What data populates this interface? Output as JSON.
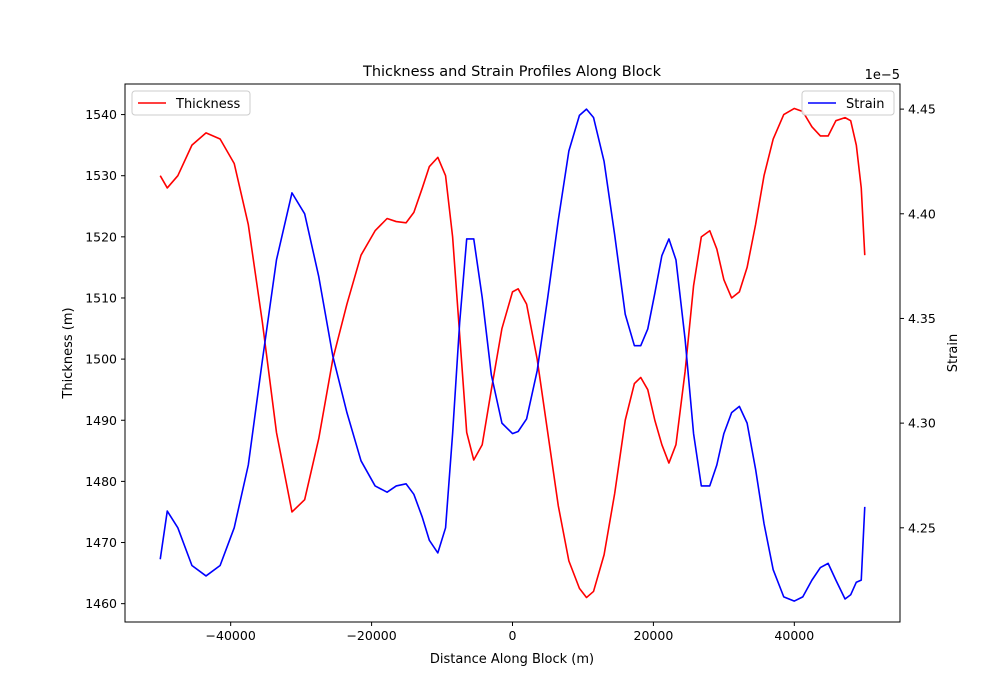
{
  "chart_data": {
    "type": "line",
    "title": "Thickness and Strain Profiles Along Block",
    "xlabel": "Distance Along Block (m)",
    "ylabel": "Thickness (m)",
    "ylabel_right": "Strain",
    "offset_text_right": "1e−5",
    "xlim": [
      -55000,
      55000
    ],
    "ylim": [
      1457,
      1545
    ],
    "ylim_right": [
      4.205,
      4.462
    ],
    "right_axis_multiplier": 1e-05,
    "xticks": [
      -40000,
      -20000,
      0,
      20000,
      40000
    ],
    "xtick_labels": [
      "−40000",
      "−20000",
      "0",
      "20000",
      "40000"
    ],
    "yticks": [
      1460,
      1470,
      1480,
      1490,
      1500,
      1510,
      1520,
      1530,
      1540
    ],
    "yticks_right": [
      4.25,
      4.3,
      4.35,
      4.4,
      4.45
    ],
    "ytick_labels_right": [
      "4.25",
      "4.30",
      "4.35",
      "4.40",
      "4.45"
    ],
    "grid": false,
    "series": [
      {
        "name": "Thickness",
        "axis": "left",
        "color": "#ff0000",
        "legend_position": "upper-left",
        "x": [
          -50000,
          -49000,
          -47500,
          -45500,
          -43500,
          -41500,
          -39500,
          -37500,
          -35500,
          -33500,
          -31300,
          -29500,
          -27500,
          -25500,
          -23500,
          -21500,
          -19500,
          -17800,
          -16500,
          -15100,
          -14000,
          -12800,
          -11800,
          -10600,
          -9500,
          -8500,
          -7500,
          -6500,
          -5500,
          -4300,
          -3000,
          -1500,
          0,
          800,
          2000,
          3500,
          5000,
          6500,
          8000,
          9500,
          10500,
          11500,
          13000,
          14500,
          16000,
          17300,
          18200,
          19200,
          20200,
          21200,
          22200,
          23200,
          24500,
          25700,
          26800,
          28000,
          29000,
          30000,
          31100,
          32200,
          33300,
          34500,
          35700,
          37000,
          38500,
          40000,
          41200,
          42500,
          43700,
          44800,
          45900,
          47200,
          48000,
          48800,
          49500,
          50000
        ],
        "y": [
          1530.0,
          1528.0,
          1530.0,
          1535.0,
          1537.0,
          1536.0,
          1532.0,
          1522.0,
          1506.0,
          1488.0,
          1475.0,
          1477.0,
          1487.0,
          1500.0,
          1509.0,
          1517.0,
          1521.0,
          1523.0,
          1522.5,
          1522.3,
          1524.0,
          1528.0,
          1531.5,
          1533.0,
          1530.0,
          1520.0,
          1504.0,
          1488.0,
          1483.5,
          1486.0,
          1495.0,
          1505.0,
          1511.0,
          1511.5,
          1509.0,
          1500.0,
          1488.0,
          1476.0,
          1467.0,
          1462.5,
          1461.0,
          1462.0,
          1468.0,
          1478.0,
          1490.0,
          1496.0,
          1497.0,
          1495.0,
          1490.0,
          1486.0,
          1483.0,
          1486.0,
          1498.0,
          1512.0,
          1520.0,
          1521.0,
          1518.0,
          1513.0,
          1510.0,
          1511.0,
          1515.0,
          1522.0,
          1530.0,
          1536.0,
          1540.0,
          1541.0,
          1540.5,
          1538.0,
          1536.5,
          1536.5,
          1539.0,
          1539.5,
          1539.0,
          1535.0,
          1528.0,
          1517.0
        ]
      },
      {
        "name": "Strain",
        "axis": "right",
        "color": "#0000ff",
        "legend_position": "upper-right",
        "x": [
          -50000,
          -49000,
          -47500,
          -45500,
          -43500,
          -41500,
          -39500,
          -37500,
          -35500,
          -33500,
          -31300,
          -29500,
          -27500,
          -25500,
          -23500,
          -21500,
          -19500,
          -17800,
          -16500,
          -15100,
          -14000,
          -12800,
          -11800,
          -10600,
          -9500,
          -8500,
          -7500,
          -6500,
          -5500,
          -4300,
          -3000,
          -1500,
          0,
          800,
          2000,
          3500,
          5000,
          6500,
          8000,
          9500,
          10500,
          11500,
          13000,
          14500,
          16000,
          17300,
          18200,
          19200,
          20200,
          21200,
          22200,
          23200,
          24500,
          25700,
          26800,
          28000,
          29000,
          30000,
          31100,
          32200,
          33300,
          34500,
          35700,
          37000,
          38500,
          40000,
          41200,
          42500,
          43700,
          44800,
          45900,
          47200,
          48000,
          48800,
          49500,
          50000
        ],
        "y": [
          4.235,
          4.258,
          4.25,
          4.232,
          4.227,
          4.232,
          4.25,
          4.28,
          4.33,
          4.378,
          4.41,
          4.4,
          4.37,
          4.332,
          4.305,
          4.282,
          4.27,
          4.267,
          4.27,
          4.271,
          4.266,
          4.255,
          4.244,
          4.238,
          4.25,
          4.295,
          4.348,
          4.388,
          4.388,
          4.36,
          4.323,
          4.3,
          4.295,
          4.296,
          4.302,
          4.325,
          4.36,
          4.397,
          4.43,
          4.447,
          4.45,
          4.446,
          4.425,
          4.39,
          4.352,
          4.337,
          4.337,
          4.345,
          4.362,
          4.38,
          4.388,
          4.378,
          4.34,
          4.295,
          4.27,
          4.27,
          4.28,
          4.295,
          4.305,
          4.308,
          4.3,
          4.278,
          4.252,
          4.23,
          4.217,
          4.215,
          4.217,
          4.225,
          4.231,
          4.233,
          4.225,
          4.216,
          4.218,
          4.224,
          4.225,
          4.26
        ]
      }
    ]
  }
}
